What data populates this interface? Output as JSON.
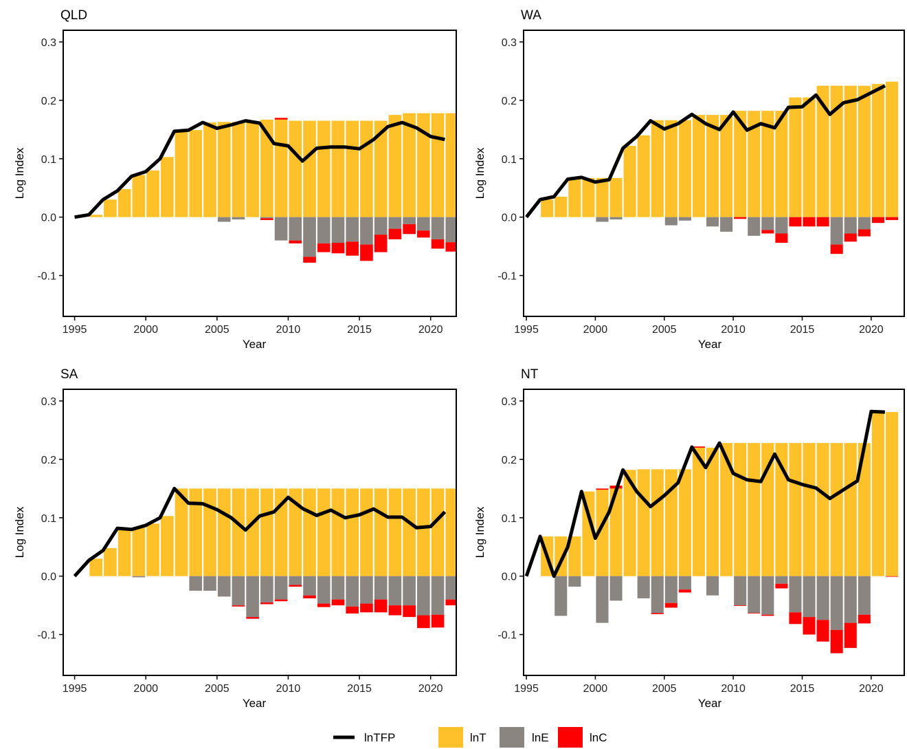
{
  "chart_data": [
    {
      "type": "bar",
      "title": "QLD",
      "xlabel": "Year",
      "ylabel": "Log Index",
      "xlim": [
        1994.2,
        2021.8
      ],
      "ylim": [
        -0.17,
        0.32
      ],
      "xticks": [
        1995,
        2000,
        2005,
        2010,
        2015,
        2020
      ],
      "yticks": [
        -0.1,
        0.0,
        0.1,
        0.2,
        0.3
      ],
      "ytick_labels": [
        "-0.1",
        "0.0",
        "0.1",
        "0.2",
        "0.3"
      ],
      "x": [
        1995,
        1996,
        1997,
        1998,
        1999,
        2000,
        2001,
        2002,
        2003,
        2004,
        2005,
        2006,
        2007,
        2008,
        2009,
        2010,
        2011,
        2012,
        2013,
        2014,
        2015,
        2016,
        2017,
        2018,
        2019,
        2020,
        2021
      ],
      "series": [
        {
          "name": "lnTFP",
          "kind": "line",
          "values": [
            0.0,
            0.004,
            0.03,
            0.045,
            0.07,
            0.078,
            0.1,
            0.147,
            0.149,
            0.162,
            0.152,
            0.158,
            0.165,
            0.161,
            0.126,
            0.122,
            0.096,
            0.118,
            0.12,
            0.12,
            0.117,
            0.133,
            0.155,
            0.162,
            0.153,
            0.138,
            0.133
          ]
        },
        {
          "name": "lnT",
          "kind": "bar",
          "values": [
            0.0,
            0.004,
            0.03,
            0.048,
            0.072,
            0.08,
            0.103,
            0.147,
            0.149,
            0.162,
            0.163,
            0.163,
            0.163,
            0.167,
            0.167,
            0.165,
            0.165,
            0.165,
            0.165,
            0.165,
            0.165,
            0.165,
            0.175,
            0.178,
            0.178,
            0.178,
            0.178
          ]
        },
        {
          "name": "lnE",
          "kind": "bar",
          "values": [
            0,
            0,
            0,
            0,
            0,
            0,
            0,
            0,
            0,
            0,
            -0.008,
            -0.004,
            0,
            -0.002,
            -0.04,
            -0.04,
            -0.068,
            -0.045,
            -0.044,
            -0.042,
            -0.047,
            -0.03,
            -0.02,
            -0.012,
            -0.023,
            -0.038,
            -0.043
          ]
        },
        {
          "name": "lnC",
          "kind": "bar",
          "values": [
            0,
            0,
            0,
            0,
            0,
            0,
            0,
            0,
            0,
            0,
            0,
            0,
            0,
            -0.003,
            0.003,
            -0.005,
            -0.01,
            -0.015,
            -0.018,
            -0.024,
            -0.028,
            -0.03,
            -0.018,
            -0.017,
            -0.012,
            -0.016,
            -0.016
          ]
        }
      ]
    },
    {
      "type": "bar",
      "title": "WA",
      "xlabel": "Year",
      "ylabel": "Log Index",
      "xlim": [
        1994.2,
        2021.8
      ],
      "ylim": [
        -0.17,
        0.32
      ],
      "xticks": [
        1995,
        2000,
        2005,
        2010,
        2015,
        2020
      ],
      "yticks": [
        -0.1,
        0.0,
        0.1,
        0.2,
        0.3
      ],
      "ytick_labels": [
        "-0.1",
        "0.0",
        "0.1",
        "0.2",
        "0.3"
      ],
      "x": [
        1995,
        1996,
        1997,
        1998,
        1999,
        2000,
        2001,
        2002,
        2003,
        2004,
        2005,
        2006,
        2007,
        2008,
        2009,
        2010,
        2011,
        2012,
        2013,
        2014,
        2015,
        2016,
        2017,
        2018,
        2019,
        2020,
        2021
      ],
      "series": [
        {
          "name": "lnTFP",
          "kind": "line",
          "values": [
            0.0,
            0.03,
            0.035,
            0.065,
            0.068,
            0.06,
            0.064,
            0.118,
            0.138,
            0.165,
            0.151,
            0.16,
            0.176,
            0.16,
            0.15,
            0.18,
            0.149,
            0.16,
            0.153,
            0.188,
            0.189,
            0.209,
            0.176,
            0.196,
            0.201,
            0.213,
            0.225
          ]
        },
        {
          "name": "lnT",
          "kind": "bar",
          "values": [
            0.0,
            0.03,
            0.035,
            0.067,
            0.067,
            0.067,
            0.067,
            0.122,
            0.14,
            0.166,
            0.166,
            0.166,
            0.175,
            0.175,
            0.175,
            0.182,
            0.182,
            0.182,
            0.182,
            0.205,
            0.205,
            0.225,
            0.225,
            0.225,
            0.225,
            0.228,
            0.232
          ]
        },
        {
          "name": "lnE",
          "kind": "bar",
          "values": [
            0,
            0,
            0,
            0,
            0,
            -0.008,
            -0.004,
            0,
            0,
            0,
            -0.014,
            -0.006,
            0,
            -0.016,
            -0.025,
            0,
            -0.032,
            -0.022,
            -0.028,
            0,
            0,
            0,
            -0.047,
            -0.028,
            -0.021,
            0,
            0
          ]
        },
        {
          "name": "lnC",
          "kind": "bar",
          "values": [
            0,
            0,
            0,
            0,
            0,
            0,
            0,
            0,
            0,
            0,
            0,
            0,
            0,
            0,
            0,
            -0.003,
            0,
            -0.006,
            -0.016,
            -0.016,
            -0.016,
            -0.016,
            -0.016,
            -0.014,
            -0.012,
            -0.01,
            -0.005
          ]
        }
      ]
    },
    {
      "type": "bar",
      "title": "SA",
      "xlabel": "Year",
      "ylabel": "Log Index",
      "xlim": [
        1994.2,
        2021.8
      ],
      "ylim": [
        -0.17,
        0.32
      ],
      "xticks": [
        1995,
        2000,
        2005,
        2010,
        2015,
        2020
      ],
      "yticks": [
        -0.1,
        0.0,
        0.1,
        0.2,
        0.3
      ],
      "ytick_labels": [
        "-0.1",
        "0.0",
        "0.1",
        "0.2",
        "0.3"
      ],
      "x": [
        1995,
        1996,
        1997,
        1998,
        1999,
        2000,
        2001,
        2002,
        2003,
        2004,
        2005,
        2006,
        2007,
        2008,
        2009,
        2010,
        2011,
        2012,
        2013,
        2014,
        2015,
        2016,
        2017,
        2018,
        2019,
        2020,
        2021
      ],
      "series": [
        {
          "name": "lnTFP",
          "kind": "line",
          "values": [
            0.0,
            0.027,
            0.044,
            0.082,
            0.08,
            0.087,
            0.1,
            0.15,
            0.125,
            0.124,
            0.114,
            0.1,
            0.079,
            0.103,
            0.11,
            0.135,
            0.116,
            0.104,
            0.113,
            0.1,
            0.105,
            0.115,
            0.101,
            0.101,
            0.083,
            0.085,
            0.11
          ]
        },
        {
          "name": "lnT",
          "kind": "bar",
          "values": [
            0.0,
            0.03,
            0.048,
            0.083,
            0.083,
            0.09,
            0.103,
            0.15,
            0.15,
            0.15,
            0.15,
            0.15,
            0.15,
            0.15,
            0.15,
            0.15,
            0.15,
            0.15,
            0.15,
            0.15,
            0.15,
            0.15,
            0.15,
            0.15,
            0.15,
            0.15,
            0.15
          ]
        },
        {
          "name": "lnE",
          "kind": "bar",
          "values": [
            0,
            0,
            0,
            0,
            -0.002,
            0,
            0,
            0,
            -0.025,
            -0.025,
            -0.035,
            -0.05,
            -0.07,
            -0.045,
            -0.04,
            -0.015,
            -0.033,
            -0.047,
            -0.04,
            -0.052,
            -0.047,
            -0.04,
            -0.05,
            -0.05,
            -0.067,
            -0.066,
            -0.04
          ]
        },
        {
          "name": "lnC",
          "kind": "bar",
          "values": [
            0,
            0,
            0,
            0,
            0,
            0,
            0,
            0,
            0,
            0,
            0,
            -0.002,
            -0.003,
            -0.003,
            -0.003,
            -0.003,
            -0.005,
            -0.006,
            -0.01,
            -0.012,
            -0.015,
            -0.022,
            -0.017,
            -0.02,
            -0.022,
            -0.022,
            -0.01
          ]
        }
      ]
    },
    {
      "type": "bar",
      "title": "NT",
      "xlabel": "Year",
      "ylabel": "Log Index",
      "xlim": [
        1994.2,
        2021.8
      ],
      "ylim": [
        -0.17,
        0.32
      ],
      "xticks": [
        1995,
        2000,
        2005,
        2010,
        2015,
        2020
      ],
      "yticks": [
        -0.1,
        0.0,
        0.1,
        0.2,
        0.3
      ],
      "ytick_labels": [
        "-0.1",
        "0.0",
        "0.1",
        "0.2",
        "0.3"
      ],
      "x": [
        1995,
        1996,
        1997,
        1998,
        1999,
        2000,
        2001,
        2002,
        2003,
        2004,
        2005,
        2006,
        2007,
        2008,
        2009,
        2010,
        2011,
        2012,
        2013,
        2014,
        2015,
        2016,
        2017,
        2018,
        2019,
        2020,
        2021
      ],
      "series": [
        {
          "name": "lnTFP",
          "kind": "line",
          "values": [
            0.0,
            0.068,
            0.0,
            0.05,
            0.145,
            0.065,
            0.11,
            0.182,
            0.145,
            0.119,
            0.138,
            0.16,
            0.221,
            0.186,
            0.228,
            0.176,
            0.165,
            0.162,
            0.209,
            0.165,
            0.157,
            0.151,
            0.133,
            0.148,
            0.163,
            0.282,
            0.281
          ]
        },
        {
          "name": "lnT",
          "kind": "bar",
          "values": [
            0.0,
            0.068,
            0.068,
            0.068,
            0.145,
            0.148,
            0.15,
            0.182,
            0.183,
            0.183,
            0.183,
            0.183,
            0.22,
            0.22,
            0.228,
            0.228,
            0.228,
            0.228,
            0.228,
            0.228,
            0.228,
            0.228,
            0.228,
            0.228,
            0.228,
            0.282,
            0.281
          ]
        },
        {
          "name": "lnE",
          "kind": "bar",
          "values": [
            0,
            0,
            -0.068,
            -0.018,
            0,
            -0.08,
            -0.042,
            0,
            -0.038,
            -0.063,
            -0.046,
            -0.023,
            0,
            -0.033,
            0,
            -0.05,
            -0.063,
            -0.066,
            -0.013,
            -0.062,
            -0.07,
            -0.075,
            -0.092,
            -0.08,
            -0.066,
            0,
            0
          ]
        },
        {
          "name": "lnC",
          "kind": "bar",
          "values": [
            0,
            0,
            0,
            0,
            0,
            0.002,
            0.005,
            0,
            0,
            -0.002,
            -0.008,
            -0.005,
            0.002,
            0,
            0,
            -0.001,
            -0.001,
            -0.002,
            -0.008,
            -0.02,
            -0.03,
            -0.037,
            -0.04,
            -0.043,
            -0.015,
            0,
            -0.001
          ]
        }
      ]
    }
  ],
  "legend": {
    "items": [
      {
        "name": "lnTFP",
        "kind": "line",
        "color": "#000000"
      },
      {
        "name": "lnT",
        "kind": "bar",
        "color": "#FFC12A"
      },
      {
        "name": "lnE",
        "kind": "bar",
        "color": "#8A8580"
      },
      {
        "name": "lnC",
        "kind": "bar",
        "color": "#FF0000"
      }
    ]
  },
  "colors": {
    "lnTFP": "#000000",
    "lnT": "#FFC12A",
    "lnE": "#8A8580",
    "lnC": "#FF0000"
  }
}
